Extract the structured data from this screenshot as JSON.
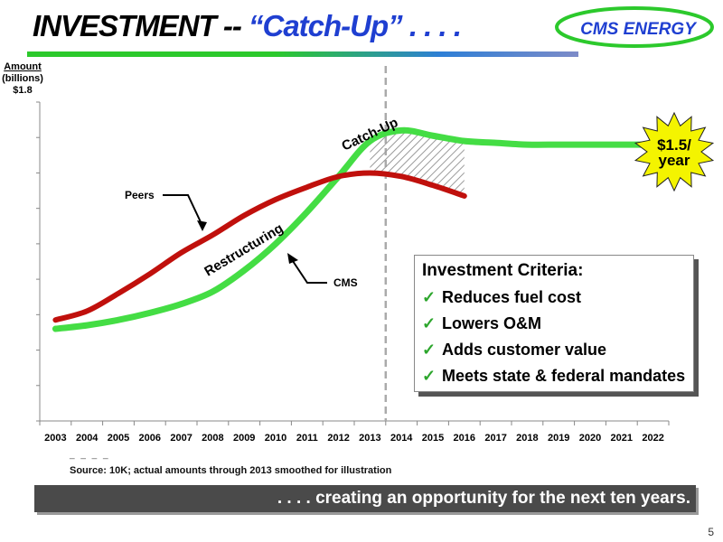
{
  "title": {
    "part1": "INVESTMENT --",
    "part2": "“Catch-Up” . . . ."
  },
  "logo": {
    "text": "CMS ENERGY"
  },
  "chart_data": {
    "type": "line",
    "x": [
      2003,
      2004,
      2005,
      2006,
      2007,
      2008,
      2009,
      2010,
      2011,
      2012,
      2013,
      2014,
      2015,
      2016,
      2017,
      2018,
      2019,
      2020,
      2021,
      2022
    ],
    "categories": [
      "2003",
      "2004",
      "2005",
      "2006",
      "2007",
      "2008",
      "2009",
      "2010",
      "2011",
      "2012",
      "2013",
      "2014",
      "2015",
      "2016",
      "2017",
      "2018",
      "2019",
      "2020",
      "2021",
      "2022"
    ],
    "ylabel": [
      "Amount",
      "(billions)"
    ],
    "ytick_top": "$1.8",
    "ylim": [
      0,
      1.8
    ],
    "yticks": [
      0,
      0.2,
      0.4,
      0.6,
      0.8,
      1.0,
      1.2,
      1.4,
      1.6,
      1.8
    ],
    "series": [
      {
        "name": "Peers",
        "color": "#c0100c",
        "x": [
          2003,
          2004,
          2005,
          2006,
          2007,
          2008,
          2009,
          2010,
          2011,
          2012,
          2013,
          2014,
          2015,
          2016
        ],
        "values": [
          0.57,
          0.62,
          0.72,
          0.83,
          0.95,
          1.05,
          1.16,
          1.25,
          1.32,
          1.38,
          1.4,
          1.38,
          1.33,
          1.27
        ]
      },
      {
        "name": "CMS",
        "color": "#44dd44",
        "x": [
          2003,
          2004,
          2005,
          2006,
          2007,
          2008,
          2009,
          2010,
          2011,
          2012,
          2013,
          2014,
          2015,
          2016,
          2017,
          2018,
          2019,
          2020,
          2021,
          2022
        ],
        "values": [
          0.52,
          0.54,
          0.57,
          0.61,
          0.66,
          0.73,
          0.85,
          1.0,
          1.18,
          1.38,
          1.58,
          1.64,
          1.61,
          1.58,
          1.57,
          1.56,
          1.56,
          1.56,
          1.56,
          1.56
        ]
      }
    ],
    "annotations": {
      "peers_label": "Peers",
      "cms_label": "CMS",
      "restructuring": "Restructuring",
      "catch_up": "Catch-Up",
      "starburst": [
        "$1.5/",
        "year"
      ]
    },
    "divider_x": 2014,
    "grid": false
  },
  "criteria": {
    "heading": "Investment Criteria:",
    "items": [
      "Reduces fuel cost",
      "Lowers O&M",
      "Adds customer value",
      "Meets state & federal mandates"
    ]
  },
  "source": {
    "dashes": "_ _ _ _",
    "text": "Source:  10K; actual amounts through 2013 smoothed for illustration"
  },
  "banner": ". . . . creating an opportunity for the next ten years.",
  "page_number": "5",
  "colors": {
    "peers": "#c0100c",
    "cms": "#44dd44",
    "title_blue": "#1f3fd1",
    "starburst": "#f4f400"
  }
}
